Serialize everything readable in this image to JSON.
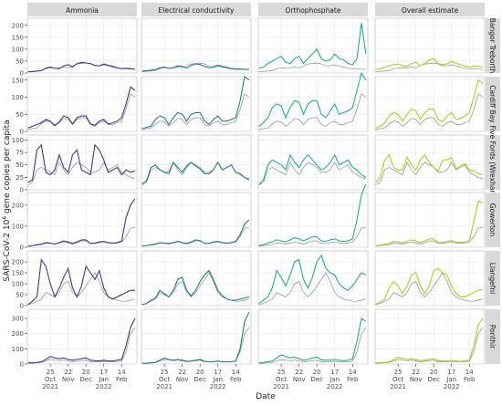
{
  "chart_data": {
    "type": "line",
    "xlabel": "Date",
    "ylabel": "SARS-CoV-2 10^6 gene copies per capita",
    "ylabel_main": "SARS-CoV-2 10",
    "ylabel_sup": "6",
    "ylabel_rest": " gene copies per capita",
    "legend": "none",
    "grid": true,
    "columns": [
      "Ammonia",
      "Electrical conductivity",
      "Orthophosphate",
      "Overall estimate"
    ],
    "rows": [
      {
        "label": "Bangor Treborth",
        "ylim": [
          0,
          230
        ],
        "yticks": [
          0,
          50,
          100,
          150,
          200
        ]
      },
      {
        "label": "Cardiff Bay",
        "ylim": [
          0,
          160
        ],
        "yticks": [
          0,
          50,
          100,
          150
        ]
      },
      {
        "label": "Five Fords (Wrexham)",
        "ylim": [
          0,
          110
        ],
        "yticks": [
          0,
          25,
          50,
          75,
          100
        ]
      },
      {
        "label": "Gowerton",
        "ylim": [
          0,
          260
        ],
        "yticks": [
          0,
          100,
          200
        ]
      },
      {
        "label": "Llangefni",
        "ylim": [
          0,
          250
        ],
        "yticks": [
          0,
          50,
          100,
          150,
          200
        ]
      },
      {
        "label": "Ponthir",
        "ylim": [
          0,
          360
        ],
        "yticks": [
          0,
          100,
          200,
          300
        ]
      }
    ],
    "x_range": [
      "2021-09-19",
      "2022-03-10"
    ],
    "x_ticks": [
      {
        "date": "2021-10-25",
        "day": "25",
        "month": "Oct",
        "year": "2021"
      },
      {
        "date": "2021-11-22",
        "day": "22",
        "month": "Nov",
        "year": ""
      },
      {
        "date": "2021-12-20",
        "day": "20",
        "month": "Dec",
        "year": ""
      },
      {
        "date": "2022-01-17",
        "day": "17",
        "month": "Jan",
        "year": "2022"
      },
      {
        "date": "2022-02-14",
        "day": "14",
        "month": "Feb",
        "year": ""
      }
    ],
    "x_values": [
      "2021-09-20",
      "2021-09-27",
      "2021-10-04",
      "2021-10-11",
      "2021-10-18",
      "2021-10-25",
      "2021-11-01",
      "2021-11-08",
      "2021-11-15",
      "2021-11-22",
      "2021-11-29",
      "2021-12-06",
      "2021-12-13",
      "2021-12-20",
      "2021-12-27",
      "2022-01-03",
      "2022-01-10",
      "2022-01-17",
      "2022-01-24",
      "2022-01-31",
      "2022-02-07",
      "2022-02-14",
      "2022-02-21",
      "2022-02-28",
      "2022-03-07"
    ],
    "series_colors": {
      "Ammonia": "#3b3b8f",
      "Electrical conductivity": "#1f7f8c",
      "Orthophosphate": "#1fb37d",
      "Overall estimate": "#a5d21c",
      "reference": "#8c8c8c"
    },
    "reference_series": [
      [
        5,
        7,
        8,
        10,
        18,
        22,
        20,
        22,
        25,
        22,
        30,
        38,
        40,
        42,
        38,
        30,
        30,
        34,
        30,
        25,
        20,
        18,
        18,
        16,
        15
      ],
      [
        5,
        8,
        10,
        22,
        30,
        28,
        15,
        25,
        38,
        35,
        20,
        35,
        40,
        40,
        20,
        15,
        25,
        30,
        20,
        20,
        25,
        30,
        65,
        110,
        100
      ],
      [
        10,
        15,
        40,
        45,
        40,
        35,
        30,
        55,
        40,
        30,
        45,
        55,
        50,
        45,
        35,
        35,
        40,
        55,
        40,
        45,
        50,
        35,
        30,
        25,
        22
      ],
      [
        5,
        8,
        10,
        12,
        20,
        18,
        15,
        20,
        25,
        20,
        15,
        22,
        30,
        30,
        18,
        18,
        22,
        25,
        20,
        18,
        20,
        25,
        50,
        90,
        95
      ],
      [
        5,
        10,
        20,
        30,
        60,
        50,
        40,
        60,
        100,
        110,
        60,
        40,
        60,
        90,
        120,
        150,
        110,
        60,
        40,
        30,
        25,
        20,
        20,
        25,
        30
      ],
      [
        5,
        5,
        8,
        10,
        20,
        30,
        25,
        22,
        25,
        20,
        15,
        18,
        22,
        25,
        15,
        15,
        15,
        18,
        15,
        15,
        15,
        20,
        80,
        200,
        240
      ]
    ],
    "series_values": {
      "Ammonia": [
        [
          5,
          6,
          8,
          10,
          20,
          25,
          20,
          18,
          30,
          35,
          25,
          40,
          45,
          42,
          40,
          32,
          30,
          38,
          32,
          28,
          22,
          18,
          20,
          18,
          16
        ],
        [
          10,
          15,
          20,
          25,
          35,
          30,
          18,
          28,
          45,
          40,
          22,
          40,
          45,
          45,
          22,
          18,
          30,
          35,
          22,
          25,
          30,
          40,
          80,
          130,
          120
        ],
        [
          15,
          20,
          80,
          90,
          35,
          30,
          40,
          70,
          45,
          35,
          70,
          80,
          40,
          35,
          30,
          90,
          80,
          60,
          35,
          40,
          45,
          30,
          40,
          35,
          38
        ],
        [
          5,
          8,
          12,
          15,
          22,
          20,
          15,
          22,
          30,
          25,
          18,
          25,
          35,
          35,
          18,
          20,
          25,
          28,
          22,
          20,
          22,
          30,
          140,
          200,
          230
        ],
        [
          5,
          20,
          40,
          210,
          180,
          100,
          40,
          80,
          130,
          170,
          80,
          40,
          90,
          180,
          150,
          120,
          160,
          80,
          40,
          30,
          40,
          50,
          60,
          70,
          70
        ],
        [
          10,
          8,
          10,
          15,
          30,
          50,
          40,
          35,
          40,
          30,
          25,
          30,
          35,
          40,
          25,
          22,
          20,
          25,
          20,
          20,
          25,
          30,
          120,
          240,
          300
        ]
      ],
      "Electrical conductivity": [
        [
          8,
          10,
          12,
          15,
          22,
          25,
          20,
          22,
          30,
          28,
          20,
          32,
          38,
          36,
          28,
          22,
          24,
          30,
          26,
          22,
          18,
          16,
          16,
          15,
          15
        ],
        [
          8,
          12,
          15,
          35,
          45,
          40,
          20,
          40,
          55,
          50,
          30,
          50,
          55,
          55,
          30,
          20,
          35,
          45,
          30,
          30,
          35,
          40,
          90,
          160,
          150
        ],
        [
          12,
          18,
          45,
          50,
          40,
          35,
          35,
          55,
          45,
          35,
          48,
          55,
          48,
          42,
          32,
          32,
          40,
          55,
          40,
          45,
          50,
          35,
          32,
          25,
          20
        ],
        [
          6,
          8,
          12,
          15,
          22,
          20,
          18,
          22,
          28,
          22,
          18,
          25,
          35,
          32,
          18,
          18,
          25,
          28,
          22,
          20,
          22,
          28,
          60,
          110,
          130
        ],
        [
          5,
          10,
          25,
          35,
          70,
          55,
          40,
          70,
          120,
          130,
          70,
          45,
          70,
          110,
          140,
          160,
          120,
          70,
          45,
          30,
          25,
          25,
          30,
          35,
          40
        ],
        [
          5,
          5,
          8,
          10,
          25,
          40,
          30,
          25,
          30,
          25,
          18,
          20,
          25,
          30,
          18,
          15,
          15,
          20,
          15,
          15,
          15,
          20,
          100,
          280,
          340
        ]
      ],
      "Orthophosphate": [
        [
          20,
          25,
          40,
          50,
          60,
          70,
          45,
          40,
          60,
          70,
          40,
          60,
          80,
          100,
          60,
          50,
          55,
          80,
          60,
          55,
          40,
          35,
          60,
          210,
          80
        ],
        [
          15,
          25,
          40,
          70,
          80,
          75,
          40,
          70,
          90,
          85,
          50,
          80,
          90,
          90,
          50,
          40,
          60,
          80,
          50,
          55,
          60,
          70,
          120,
          170,
          150
        ],
        [
          10,
          20,
          50,
          60,
          55,
          50,
          40,
          70,
          55,
          45,
          60,
          70,
          60,
          50,
          40,
          45,
          55,
          70,
          50,
          55,
          60,
          45,
          40,
          30,
          25
        ],
        [
          8,
          12,
          20,
          25,
          35,
          30,
          25,
          35,
          45,
          40,
          30,
          40,
          50,
          50,
          30,
          28,
          35,
          40,
          30,
          28,
          30,
          40,
          130,
          250,
          300
        ],
        [
          10,
          25,
          40,
          80,
          160,
          130,
          90,
          140,
          200,
          210,
          120,
          80,
          130,
          200,
          230,
          170,
          150,
          140,
          100,
          80,
          70,
          90,
          120,
          150,
          140
        ],
        [
          8,
          10,
          15,
          20,
          40,
          60,
          50,
          40,
          45,
          35,
          25,
          30,
          40,
          45,
          28,
          25,
          25,
          30,
          25,
          22,
          25,
          35,
          150,
          300,
          280
        ]
      ],
      "Overall estimate": [
        [
          15,
          18,
          25,
          30,
          35,
          38,
          30,
          28,
          40,
          45,
          30,
          40,
          55,
          60,
          40,
          35,
          38,
          50,
          40,
          35,
          30,
          25,
          30,
          28,
          25
        ],
        [
          10,
          15,
          25,
          45,
          55,
          50,
          30,
          50,
          65,
          60,
          35,
          55,
          65,
          65,
          35,
          28,
          45,
          55,
          35,
          38,
          45,
          55,
          100,
          150,
          140
        ],
        [
          15,
          25,
          60,
          70,
          45,
          40,
          40,
          65,
          50,
          40,
          60,
          70,
          55,
          45,
          38,
          60,
          60,
          65,
          42,
          48,
          52,
          40,
          38,
          32,
          30
        ],
        [
          6,
          10,
          15,
          18,
          28,
          25,
          20,
          28,
          35,
          30,
          22,
          30,
          40,
          40,
          22,
          22,
          28,
          32,
          25,
          22,
          25,
          32,
          120,
          220,
          210
        ],
        [
          8,
          15,
          30,
          80,
          110,
          90,
          55,
          90,
          140,
          150,
          90,
          55,
          90,
          160,
          170,
          150,
          140,
          90,
          55,
          40,
          40,
          50,
          60,
          70,
          75
        ],
        [
          8,
          8,
          10,
          14,
          30,
          45,
          38,
          30,
          35,
          28,
          22,
          25,
          30,
          35,
          22,
          20,
          20,
          24,
          20,
          18,
          20,
          28,
          120,
          260,
          300
        ]
      ]
    }
  }
}
